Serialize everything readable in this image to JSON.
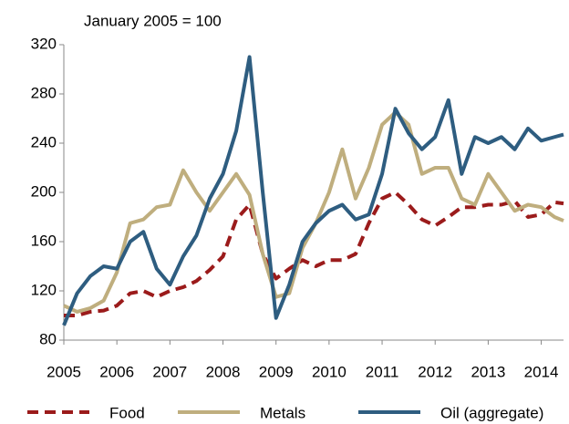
{
  "chart_data": {
    "type": "line",
    "subtitle": "January 2005 = 100",
    "x": [
      2005.0,
      2005.25,
      2005.5,
      2005.75,
      2006.0,
      2006.25,
      2006.5,
      2006.75,
      2007.0,
      2007.25,
      2007.5,
      2007.75,
      2008.0,
      2008.25,
      2008.5,
      2008.75,
      2009.0,
      2009.25,
      2009.5,
      2009.75,
      2010.0,
      2010.25,
      2010.5,
      2010.75,
      2011.0,
      2011.25,
      2011.5,
      2011.75,
      2012.0,
      2012.25,
      2012.5,
      2012.75,
      2013.0,
      2013.25,
      2013.5,
      2013.75,
      2014.0,
      2014.25,
      2014.42
    ],
    "series": [
      {
        "name": "Food",
        "color": "#9b1b1b",
        "dash": true,
        "values": [
          100,
          100,
          103,
          104,
          108,
          118,
          120,
          115,
          120,
          123,
          128,
          137,
          148,
          178,
          190,
          150,
          130,
          138,
          145,
          140,
          145,
          145,
          150,
          175,
          195,
          200,
          190,
          178,
          173,
          180,
          188,
          188,
          190,
          190,
          193,
          180,
          182,
          192,
          191
        ]
      },
      {
        "name": "Metals",
        "color": "#bfae7e",
        "dash": false,
        "values": [
          108,
          103,
          106,
          112,
          135,
          175,
          178,
          188,
          190,
          218,
          200,
          185,
          200,
          215,
          198,
          150,
          115,
          118,
          155,
          175,
          200,
          235,
          195,
          220,
          255,
          265,
          255,
          215,
          220,
          220,
          195,
          190,
          215,
          200,
          185,
          190,
          188,
          180,
          177
        ]
      },
      {
        "name": "Oil (aggregate)",
        "color": "#2e5d80",
        "dash": false,
        "values": [
          92,
          118,
          132,
          140,
          138,
          160,
          168,
          138,
          125,
          148,
          165,
          195,
          215,
          250,
          310,
          200,
          98,
          125,
          160,
          175,
          185,
          190,
          178,
          182,
          215,
          268,
          248,
          235,
          245,
          275,
          215,
          245,
          240,
          245,
          235,
          252,
          242,
          245,
          247
        ]
      }
    ],
    "xlim": [
      2005,
      2014.42
    ],
    "xticks": [
      2005,
      2006,
      2007,
      2008,
      2009,
      2010,
      2011,
      2012,
      2013,
      2014
    ],
    "ylim": [
      80,
      320
    ],
    "yticks": [
      80,
      120,
      160,
      200,
      240,
      280,
      320
    ],
    "grid": false,
    "legend": "bottom"
  }
}
